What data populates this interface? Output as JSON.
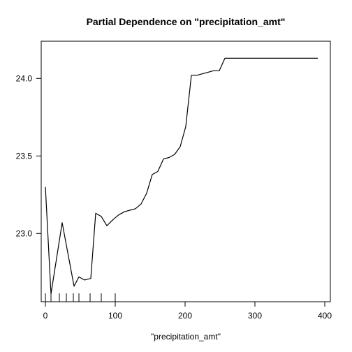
{
  "chart_data": {
    "type": "line",
    "title": "Partial Dependence on \"precipitation_amt\"",
    "xlabel": "\"precipitation_amt\"",
    "ylabel": "",
    "xlim": [
      -6,
      408
    ],
    "ylim": [
      22.56,
      24.24
    ],
    "xticks": [
      0,
      100,
      200,
      300,
      400
    ],
    "yticks": [
      23.0,
      23.5,
      24.0
    ],
    "xtick_labels": [
      "0",
      "100",
      "200",
      "300",
      "400"
    ],
    "ytick_labels": [
      "23.0",
      "23.5",
      "24.0"
    ],
    "grid": false,
    "legend": "none",
    "line_color": "#000000",
    "series": [
      {
        "x": [
          0,
          8,
          24,
          41,
          48,
          56,
          65,
          72,
          80,
          88,
          97,
          105,
          113,
          121,
          129,
          137,
          145,
          153,
          161,
          169,
          177,
          185,
          193,
          201,
          209,
          217,
          225,
          233,
          241,
          249,
          257,
          265,
          273,
          281,
          289,
          297,
          305,
          313,
          330,
          350,
          370,
          390
        ],
        "y": [
          23.3,
          22.61,
          23.07,
          22.66,
          22.72,
          22.7,
          22.71,
          23.13,
          23.11,
          23.05,
          23.09,
          23.12,
          23.14,
          23.15,
          23.16,
          23.19,
          23.26,
          23.38,
          23.4,
          23.48,
          23.49,
          23.51,
          23.56,
          23.69,
          24.02,
          24.02,
          24.03,
          24.04,
          24.05,
          24.05,
          24.13,
          24.13,
          24.13,
          24.13,
          24.13,
          24.13,
          24.13,
          24.13,
          24.13,
          24.13,
          24.13,
          24.13
        ]
      }
    ],
    "rug": [
      0,
      8,
      20,
      30,
      40,
      48,
      64,
      80,
      100
    ]
  }
}
